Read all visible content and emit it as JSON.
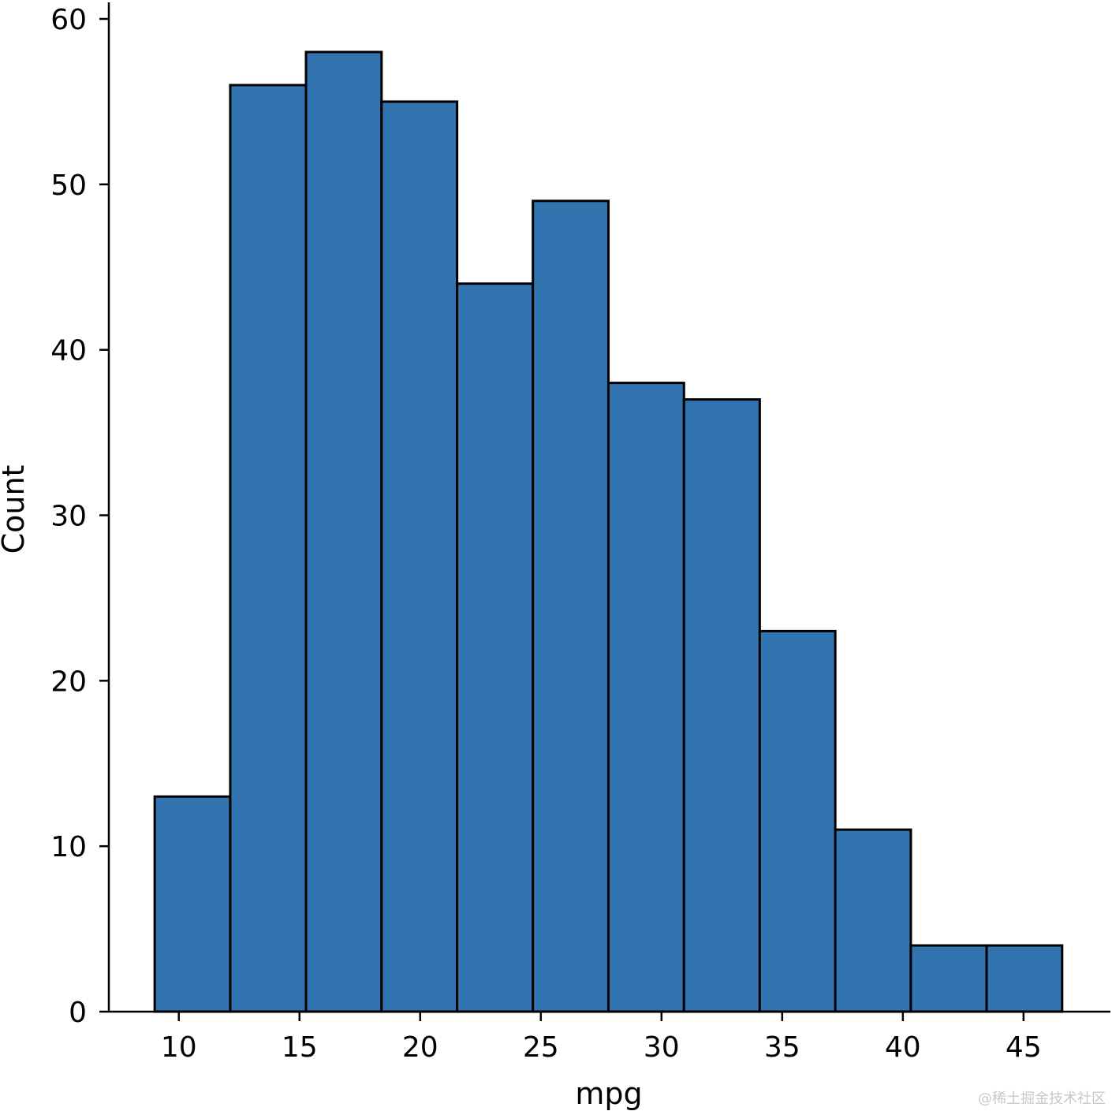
{
  "chart_data": {
    "type": "bar",
    "subtype": "histogram",
    "xlabel": "mpg",
    "ylabel": "Count",
    "bin_edges": [
      9.0,
      12.13,
      15.27,
      18.4,
      21.53,
      24.67,
      27.8,
      30.93,
      34.07,
      37.2,
      40.33,
      43.47,
      46.6
    ],
    "values": [
      13,
      56,
      58,
      55,
      44,
      49,
      38,
      37,
      23,
      11,
      4,
      4
    ],
    "xlim": [
      7.1,
      48.6
    ],
    "ylim": [
      0,
      61
    ],
    "xticks": [
      10,
      15,
      20,
      25,
      30,
      35,
      40,
      45
    ],
    "xtick_labels": [
      "10",
      "15",
      "20",
      "25",
      "30",
      "35",
      "40",
      "45"
    ],
    "yticks": [
      0,
      10,
      20,
      30,
      40,
      50,
      60
    ],
    "ytick_labels": [
      "0",
      "10",
      "20",
      "30",
      "40",
      "50",
      "60"
    ],
    "bar_color": "#3274b0",
    "edge_color": "#000000",
    "grid": false,
    "spines": "left-bottom"
  },
  "watermark": "@稀土掘金技术社区"
}
